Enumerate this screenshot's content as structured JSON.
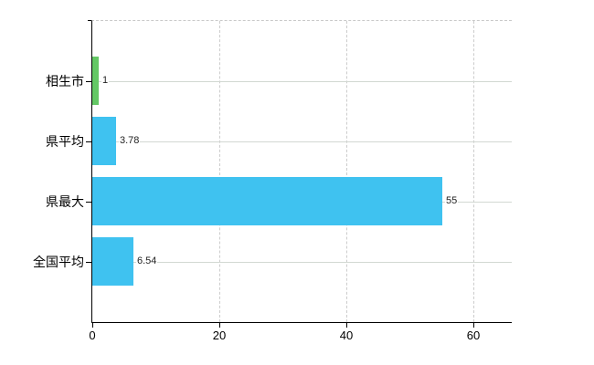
{
  "chart_data": {
    "type": "bar",
    "orientation": "horizontal",
    "title": "",
    "categories": [
      "相生市",
      "県平均",
      "県最大",
      "全国平均"
    ],
    "values": [
      1,
      3.78,
      55,
      6.54
    ],
    "value_labels": [
      "1",
      "3.78",
      "55",
      "6.54"
    ],
    "x_ticks": [
      0,
      20,
      40,
      60
    ],
    "x_tick_labels": [
      "0",
      "20",
      "40",
      "60"
    ],
    "xlim": [
      0,
      66
    ],
    "xlabel": "",
    "ylabel": "",
    "legend": "none",
    "grid": {
      "vertical_gridlines": "dashed",
      "row_gridlines": "solid",
      "top_border": "dashed"
    },
    "colors": {
      "bar_default": "#3fc2f0",
      "bar_highlight": "#64c865",
      "highlight_index": 0,
      "axis": "#000000",
      "row_gridline": "#d2d8d2",
      "vertical_gridline": "#cccccc",
      "category_text": "#000000",
      "value_text": "#222222",
      "background": "#ffffff"
    },
    "bar_colors": [
      "#64c865",
      "#3fc2f0",
      "#3fc2f0",
      "#3fc2f0"
    ]
  }
}
